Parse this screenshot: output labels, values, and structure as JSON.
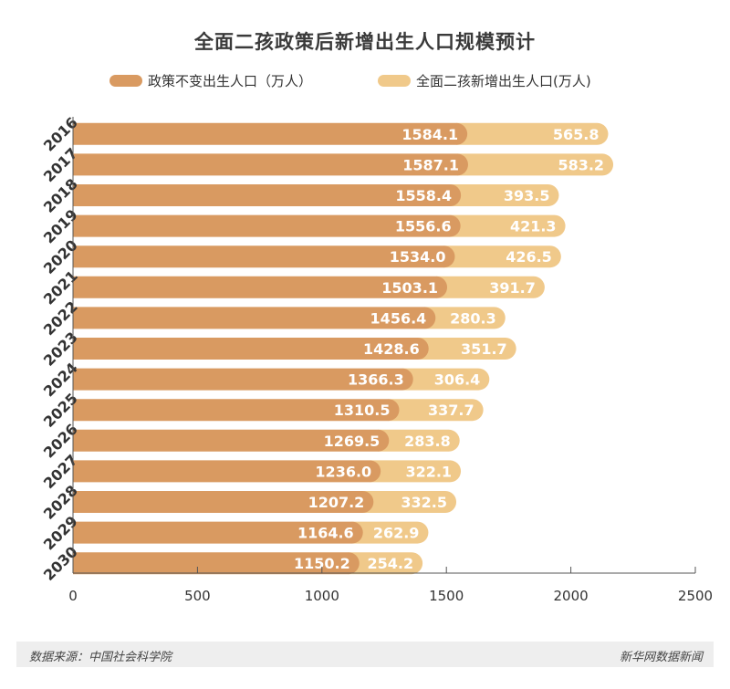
{
  "header": {
    "title": "全面二孩政策后新增出生人口规模预计"
  },
  "legend": {
    "items": [
      {
        "label": "政策不变出生人口（万人）",
        "color": "#d99a61"
      },
      {
        "label": "全面二孩新增出生人口(万人)",
        "color": "#f0c98a"
      }
    ]
  },
  "footer": {
    "source": "数据来源：中国社会科学院",
    "credit": "新华网数据新闻"
  },
  "chart_data": {
    "type": "bar",
    "orientation": "horizontal",
    "stacked": true,
    "categories": [
      "2016",
      "2017",
      "2018",
      "2019",
      "2020",
      "2021",
      "2022",
      "2023",
      "2024",
      "2025",
      "2026",
      "2027",
      "2028",
      "2029",
      "2030"
    ],
    "series": [
      {
        "name": "政策不变出生人口（万人）",
        "color": "#d99a61",
        "values": [
          1584.1,
          1587.1,
          1558.4,
          1556.6,
          1534.0,
          1503.1,
          1456.4,
          1428.6,
          1366.3,
          1310.5,
          1269.5,
          1236.0,
          1207.2,
          1164.6,
          1150.2
        ]
      },
      {
        "name": "全面二孩新增出生人口(万人)",
        "color": "#f0c98a",
        "values": [
          565.8,
          583.2,
          393.5,
          421.3,
          426.5,
          391.7,
          280.3,
          351.7,
          306.4,
          337.7,
          283.8,
          322.1,
          332.5,
          262.9,
          254.2
        ]
      }
    ],
    "xlim": [
      0,
      2500
    ],
    "xticks": [
      "0",
      "500",
      "1000",
      "1500",
      "2000",
      "2500"
    ],
    "value_labels": true,
    "grid": false
  }
}
